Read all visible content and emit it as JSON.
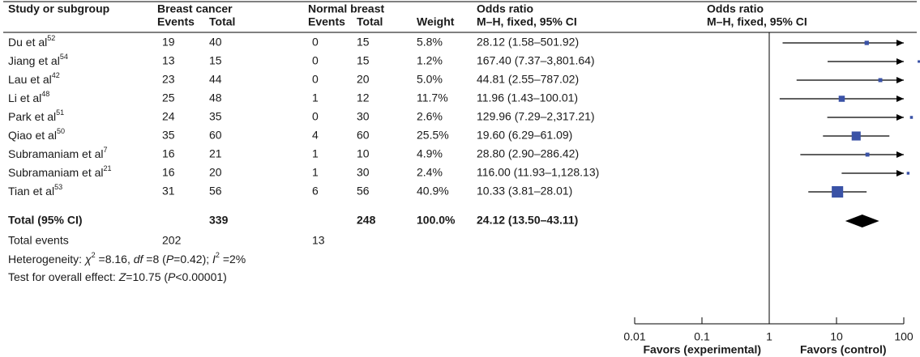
{
  "chart_data": {
    "type": "forest",
    "headers": {
      "study": "Study or subgroup",
      "group1": "Breast cancer",
      "group2": "Normal breast",
      "events": "Events",
      "total": "Total",
      "weight": "Weight",
      "ci_col": "Odds ratio",
      "ci_col_sub": "M–H, fixed, 95% CI",
      "plot_col": "Odds ratio",
      "plot_col_sub": "M–H, fixed, 95% CI"
    },
    "studies": [
      {
        "name": "Du et al",
        "ref": "52",
        "e1": 19,
        "t1": 40,
        "e2": 0,
        "t2": 15,
        "weight": 5.8,
        "weight_label": "5.8%",
        "or": 28.12,
        "lower": 1.58,
        "upper": 501.92,
        "ci_label": "28.12 (1.58–501.92)"
      },
      {
        "name": "Jiang et al",
        "ref": "54",
        "e1": 13,
        "t1": 15,
        "e2": 0,
        "t2": 15,
        "weight": 1.2,
        "weight_label": "1.2%",
        "or": 167.4,
        "lower": 7.37,
        "upper": 3801.64,
        "ci_label": "167.40 (7.37–3,801.64)"
      },
      {
        "name": "Lau et al",
        "ref": "42",
        "e1": 23,
        "t1": 44,
        "e2": 0,
        "t2": 20,
        "weight": 5.0,
        "weight_label": "5.0%",
        "or": 44.81,
        "lower": 2.55,
        "upper": 787.02,
        "ci_label": "44.81 (2.55–787.02)"
      },
      {
        "name": "Li et al",
        "ref": "48",
        "e1": 25,
        "t1": 48,
        "e2": 1,
        "t2": 12,
        "weight": 11.7,
        "weight_label": "11.7%",
        "or": 11.96,
        "lower": 1.43,
        "upper": 100.01,
        "ci_label": "11.96 (1.43–100.01)"
      },
      {
        "name": "Park et al",
        "ref": "51",
        "e1": 24,
        "t1": 35,
        "e2": 0,
        "t2": 30,
        "weight": 2.6,
        "weight_label": "2.6%",
        "or": 129.96,
        "lower": 7.29,
        "upper": 2317.21,
        "ci_label": "129.96 (7.29–2,317.21)"
      },
      {
        "name": "Qiao et al",
        "ref": "50",
        "e1": 35,
        "t1": 60,
        "e2": 4,
        "t2": 60,
        "weight": 25.5,
        "weight_label": "25.5%",
        "or": 19.6,
        "lower": 6.29,
        "upper": 61.09,
        "ci_label": "19.60 (6.29–61.09)"
      },
      {
        "name": "Subramaniam et al",
        "ref": "7",
        "e1": 16,
        "t1": 21,
        "e2": 1,
        "t2": 10,
        "weight": 4.9,
        "weight_label": "4.9%",
        "or": 28.8,
        "lower": 2.9,
        "upper": 286.42,
        "ci_label": "28.80 (2.90–286.42)"
      },
      {
        "name": "Subramaniam et al",
        "ref": "21",
        "e1": 16,
        "t1": 20,
        "e2": 1,
        "t2": 30,
        "weight": 2.4,
        "weight_label": "2.4%",
        "or": 116.0,
        "lower": 11.93,
        "upper": 1128.13,
        "ci_label": "116.00 (11.93–1,128.13)"
      },
      {
        "name": "Tian et al",
        "ref": "53",
        "e1": 31,
        "t1": 56,
        "e2": 6,
        "t2": 56,
        "weight": 40.9,
        "weight_label": "40.9%",
        "or": 10.33,
        "lower": 3.81,
        "upper": 28.01,
        "ci_label": "10.33 (3.81–28.01)"
      }
    ],
    "total": {
      "name": "Total (95% CI)",
      "t1": 339,
      "t2": 248,
      "weight_label": "100.0%",
      "or": 24.12,
      "lower": 13.5,
      "upper": 43.11,
      "ci_label": "24.12 (13.50–43.11)"
    },
    "total_events": {
      "label": "Total events",
      "e1": 202,
      "e2": 13
    },
    "heterogeneity": [
      {
        "text": "Heterogeneity: "
      },
      {
        "text": "χ",
        "style": "italic"
      },
      {
        "text": "2",
        "style": "sup"
      },
      {
        "text": " =8.16, "
      },
      {
        "text": "df",
        "style": "italic"
      },
      {
        "text": " =8 ("
      },
      {
        "text": "P",
        "style": "italic"
      },
      {
        "text": "=0.42); "
      },
      {
        "text": "I",
        "style": "italic"
      },
      {
        "text": "2",
        "style": "sup"
      },
      {
        "text": " =2%"
      }
    ],
    "overall_effect": [
      {
        "text": "Test for overall effect: "
      },
      {
        "text": "Z",
        "style": "italic"
      },
      {
        "text": "=10.75 ("
      },
      {
        "text": "P",
        "style": "italic"
      },
      {
        "text": "<0.00001)"
      }
    ],
    "xlim": [
      0.01,
      100
    ],
    "xticks": [
      0.01,
      0.1,
      1,
      10,
      100
    ],
    "log_scale": true,
    "reference_line": 1,
    "favors_left": "Favors (experimental)",
    "favors_right": "Favors (control)",
    "square_color": "#3a52a6",
    "diamond_color": "#000000"
  }
}
